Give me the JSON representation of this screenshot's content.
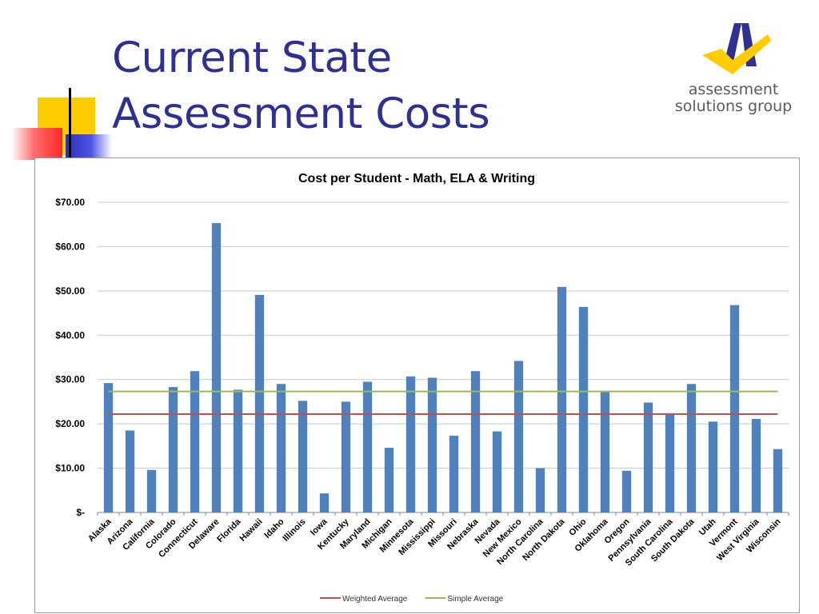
{
  "slide": {
    "title_line1": "Current State",
    "title_line2": "Assessment Costs"
  },
  "logo": {
    "line1": "assessment",
    "line2": "solutions group"
  },
  "colors": {
    "title": "#2e3192",
    "bar": "#4f81bd",
    "weighted_average": "#c0504d",
    "simple_average": "#9bbb59"
  },
  "chart_data": {
    "type": "bar",
    "title": "Cost per Student - Math, ELA & Writing",
    "xlabel": "",
    "ylabel": "",
    "ylim": [
      0,
      70
    ],
    "yticks": [
      {
        "value": 0,
        "label": "$-"
      },
      {
        "value": 10,
        "label": "$10.00"
      },
      {
        "value": 20,
        "label": "$20.00"
      },
      {
        "value": 30,
        "label": "$30.00"
      },
      {
        "value": 40,
        "label": "$40.00"
      },
      {
        "value": 50,
        "label": "$50.00"
      },
      {
        "value": 60,
        "label": "$60.00"
      },
      {
        "value": 70,
        "label": "$70.00"
      }
    ],
    "grid": true,
    "legend_position": "bottom",
    "categories": [
      "Alaska",
      "Arizona",
      "California",
      "Colorado",
      "Connecticut",
      "Delaware",
      "Florida",
      "Hawaii",
      "Idaho",
      "Illinois",
      "Iowa",
      "Kentucky",
      "Maryland",
      "Michigan",
      "Minnesota",
      "Mississippi",
      "Missouri",
      "Nebraska",
      "Nevada",
      "New Mexico",
      "North Carolina",
      "North Dakota",
      "Ohio",
      "Oklahoma",
      "Oregon",
      "Pennsylvania",
      "South Carolina",
      "South Dakota",
      "Utah",
      "Vermont",
      "West Virginia",
      "Wisconsin"
    ],
    "values": [
      29.2,
      18.5,
      9.6,
      28.3,
      31.9,
      65.3,
      27.7,
      49.1,
      29.0,
      25.2,
      4.3,
      25.0,
      29.5,
      14.6,
      30.7,
      30.4,
      17.3,
      31.9,
      18.3,
      34.2,
      10.0,
      50.9,
      46.4,
      27.2,
      9.4,
      24.8,
      22.4,
      29.0,
      20.5,
      46.8,
      21.1,
      14.3
    ],
    "lines": [
      {
        "name": "Weighted Average",
        "value": 22.2
      },
      {
        "name": "Simple Average",
        "value": 27.3
      }
    ]
  }
}
